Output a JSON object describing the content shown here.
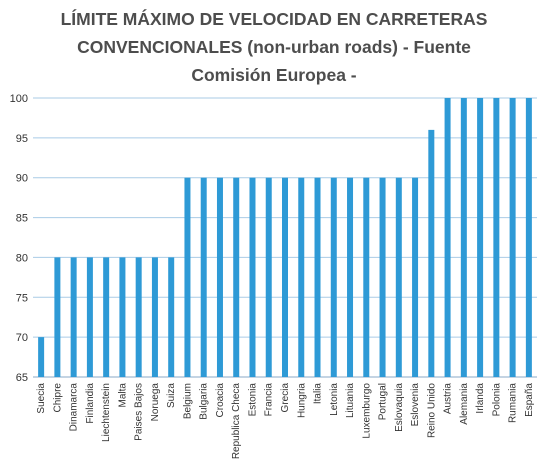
{
  "chart_data": {
    "type": "bar",
    "title_lines": [
      "LÍMITE MÁXIMO DE VELOCIDAD EN CARRETERAS",
      "CONVENCIONALES (non-urban roads) - Fuente",
      "Comisión Europea -"
    ],
    "categories": [
      "Suecia",
      "Chipre",
      "Dinamarca",
      "Finlandia",
      "Liechtenstein",
      "Malta",
      "Paises Bajos",
      "Noruega",
      "Suiza",
      "Belgium",
      "Bulgaria",
      "Croacia",
      "Republica Checa",
      "Estonia",
      "Francia",
      "Grecia",
      "Hungria",
      "Italia",
      "Letonia",
      "Lituania",
      "Luxemburgo",
      "Portugal",
      "Eslovaquia",
      "Eslovenia",
      "Reino Unido",
      "Austria",
      "Alemania",
      "Irlanda",
      "Polonia",
      "Rumania",
      "España"
    ],
    "values": [
      70,
      80,
      80,
      80,
      80,
      80,
      80,
      80,
      80,
      90,
      90,
      90,
      90,
      90,
      90,
      90,
      90,
      90,
      90,
      90,
      90,
      90,
      90,
      90,
      96,
      100,
      100,
      100,
      100,
      100,
      100
    ],
    "ylim": [
      65,
      100
    ],
    "yticks": [
      "65",
      "70",
      "75",
      "80",
      "85",
      "90",
      "95",
      "100"
    ],
    "grid": true,
    "bar_color": "#2e9ad6"
  }
}
